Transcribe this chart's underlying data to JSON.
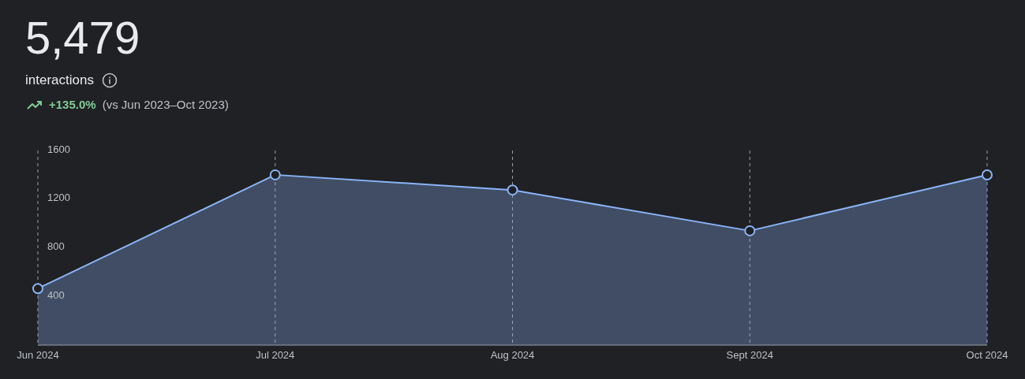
{
  "chart_data": {
    "type": "area",
    "title": "5,479",
    "subtitle": "interactions",
    "annotations": [
      "+135.0%",
      "(vs Jun 2023–Oct 2023)"
    ],
    "categories": [
      "Jun 2024",
      "Jul 2024",
      "Aug 2024",
      "Sept 2024",
      "Oct 2024"
    ],
    "series": [
      {
        "color": "#8ab4f8",
        "values": [
          465,
          1400,
          1275,
          940,
          1399
        ]
      }
    ],
    "ylim": [
      0,
      1600
    ],
    "yticks": [
      400,
      800,
      1200,
      1600
    ],
    "grid": "x",
    "marker": "circle",
    "line_style": "solid",
    "legend": false
  }
}
